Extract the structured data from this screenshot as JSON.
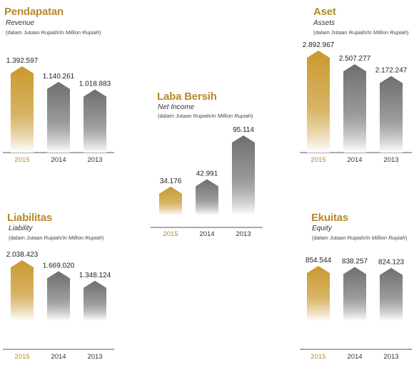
{
  "colors": {
    "accent": "#b58a2c",
    "gold_top": "#c9992f",
    "gold_bottom": "#ffffff",
    "grey_top": "#6e6e70",
    "grey_bottom": "#ffffff",
    "axis": "#555555"
  },
  "chart_data": [
    {
      "id": "revenue",
      "type": "bar",
      "title": "Pendapatan",
      "subtitle": "Revenue",
      "note_prefix": "(dalam Jutaan Rupiah/",
      "note_italic": "In Million Rupiah",
      "note_suffix": ")",
      "categories": [
        "2015",
        "2014",
        "2013"
      ],
      "values": [
        1392597,
        1140261,
        1018883
      ],
      "value_labels": [
        "1.392.597",
        "1.140.261",
        "1.018.883"
      ],
      "ylim": [
        0,
        1500000
      ]
    },
    {
      "id": "assets",
      "type": "bar",
      "title": "Aset",
      "subtitle": "Assets",
      "note_prefix": "(dalam Jutaan Rupiah/",
      "note_italic": "In Million Rupiah",
      "note_suffix": ")",
      "categories": [
        "2015",
        "2014",
        "2013"
      ],
      "values": [
        2892967,
        2507277,
        2172247
      ],
      "value_labels": [
        "2.892.967",
        "2.507.277",
        "2.172.247"
      ],
      "ylim": [
        0,
        3100000
      ]
    },
    {
      "id": "net_income",
      "type": "bar",
      "title": "Laba Bersih",
      "subtitle": "Net Income",
      "note_prefix": "(dalam Jutaan Rupiah/",
      "note_italic": "In Million Rupiah",
      "note_suffix": ")",
      "categories": [
        "2015",
        "2014",
        "2013"
      ],
      "values": [
        34176,
        42991,
        95114
      ],
      "value_labels": [
        "34.176",
        "42.991",
        "95.114"
      ],
      "ylim": [
        0,
        100000
      ]
    },
    {
      "id": "liability",
      "type": "bar",
      "title": "Liabilitas",
      "subtitle": "Liability",
      "note_prefix": "(dalam Jutaan Rupiah/",
      "note_italic": "In Million Rupiah",
      "note_suffix": ")",
      "categories": [
        "2015",
        "2014",
        "2013"
      ],
      "values": [
        2038423,
        1669020,
        1348124
      ],
      "value_labels": [
        "2.038.423",
        "1.669.020",
        "1.348.124"
      ],
      "ylim": [
        0,
        2200000
      ]
    },
    {
      "id": "equity",
      "type": "bar",
      "title": "Ekuitas",
      "subtitle": "Equity",
      "note_prefix": "(dalam Jutaan Rupiah/",
      "note_italic": "In Million Rupiah",
      "note_suffix": ")",
      "categories": [
        "2015",
        "2014",
        "2013"
      ],
      "values": [
        854544,
        838257,
        824123
      ],
      "value_labels": [
        "854.544",
        "838.257",
        "824.123"
      ],
      "ylim": [
        0,
        930000
      ]
    }
  ]
}
